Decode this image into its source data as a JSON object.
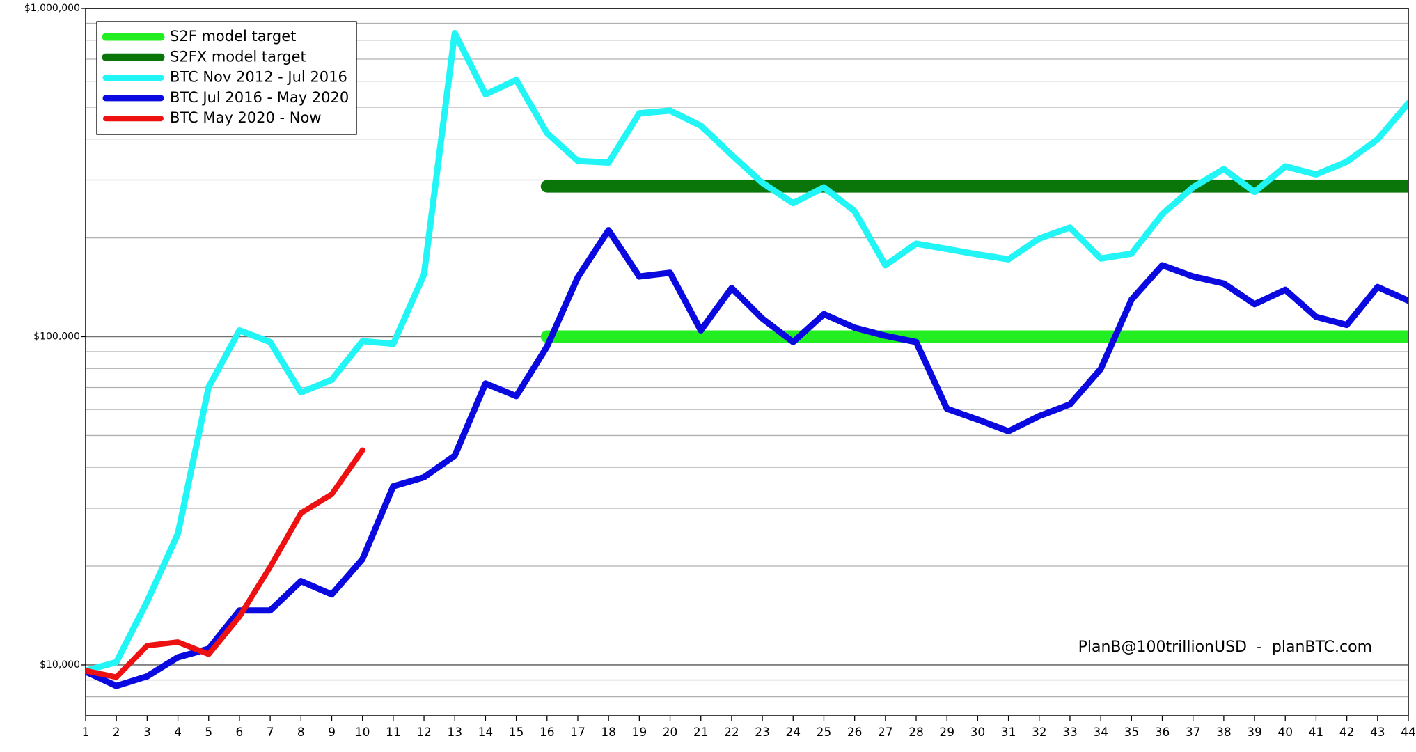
{
  "chart_data": {
    "type": "line",
    "log_y": true,
    "grid": true,
    "legend": "upper left",
    "annotation": "PlanB@100trillionUSD  -  planBTC.com",
    "x": [
      1,
      2,
      3,
      4,
      5,
      6,
      7,
      8,
      9,
      10,
      11,
      12,
      13,
      14,
      15,
      16,
      17,
      18,
      19,
      20,
      21,
      22,
      23,
      24,
      25,
      26,
      27,
      28,
      29,
      30,
      31,
      32,
      33,
      34,
      35,
      36,
      37,
      38,
      39,
      40,
      41,
      42,
      43,
      44
    ],
    "xlim": [
      1,
      44
    ],
    "xticks": [
      1,
      2,
      3,
      4,
      5,
      6,
      7,
      8,
      9,
      10,
      11,
      12,
      13,
      14,
      15,
      16,
      17,
      18,
      19,
      20,
      21,
      22,
      23,
      24,
      25,
      26,
      27,
      28,
      29,
      30,
      31,
      32,
      33,
      34,
      35,
      36,
      37,
      38,
      39,
      40,
      41,
      42,
      43,
      44
    ],
    "ylim": [
      7000,
      1000000
    ],
    "yticks": [
      {
        "value": 10000,
        "label": "$10,000"
      },
      {
        "value": 100000,
        "label": "$100,000"
      },
      {
        "value": 1000000,
        "label": "$1,000,000"
      }
    ],
    "yminor": [
      8000,
      9000,
      20000,
      30000,
      40000,
      50000,
      60000,
      70000,
      80000,
      90000,
      200000,
      300000,
      400000,
      500000,
      600000,
      700000,
      800000,
      900000
    ],
    "series": [
      {
        "name": "S2F model target",
        "color": "#22ee22",
        "width": 18,
        "values": [
          null,
          null,
          null,
          null,
          null,
          null,
          null,
          null,
          null,
          null,
          null,
          null,
          null,
          null,
          null,
          100000,
          100000,
          100000,
          100000,
          100000,
          100000,
          100000,
          100000,
          100000,
          100000,
          100000,
          100000,
          100000,
          100000,
          100000,
          100000,
          100000,
          100000,
          100000,
          100000,
          100000,
          100000,
          100000,
          100000,
          100000,
          100000,
          100000,
          100000,
          100000
        ]
      },
      {
        "name": "S2FX model target",
        "color": "#0a760a",
        "width": 18,
        "values": [
          null,
          null,
          null,
          null,
          null,
          null,
          null,
          null,
          null,
          null,
          null,
          null,
          null,
          null,
          null,
          287000,
          287000,
          287000,
          287000,
          287000,
          287000,
          287000,
          287000,
          287000,
          287000,
          287000,
          287000,
          287000,
          287000,
          287000,
          287000,
          287000,
          287000,
          287000,
          287000,
          287000,
          287000,
          287000,
          287000,
          287000,
          287000,
          287000,
          287000,
          287000
        ]
      },
      {
        "name": "BTC Nov 2012 - Jul 2016",
        "color": "#22f5f5",
        "width": 9,
        "values": [
          9600,
          10200,
          15600,
          25100,
          70200,
          104500,
          96300,
          67600,
          73900,
          96900,
          95100,
          154600,
          841000,
          547000,
          605000,
          417000,
          343000,
          339000,
          479000,
          488000,
          439000,
          358000,
          294000,
          255000,
          285000,
          241000,
          165000,
          192000,
          185000,
          178000,
          172000,
          199000,
          215000,
          173000,
          179000,
          236000,
          285000,
          324000,
          276000,
          330000,
          312000,
          341000,
          399000,
          514000
        ]
      },
      {
        "name": "BTC Jul 2016 - May 2020",
        "color": "#0a0ae0",
        "width": 9,
        "values": [
          9540,
          8630,
          9230,
          10550,
          11200,
          14650,
          14650,
          18000,
          16400,
          21000,
          35000,
          37300,
          43400,
          72000,
          65900,
          93300,
          151700,
          211000,
          152500,
          156500,
          104500,
          140600,
          113500,
          96300,
          117100,
          106500,
          100600,
          96300,
          60300,
          55900,
          51500,
          57300,
          62200,
          79700,
          129600,
          165000,
          152500,
          145200,
          125600,
          138900,
          114900,
          108600,
          141600,
          128700
        ]
      },
      {
        "name": "BTC May 2020 - Now",
        "color": "#ee1111",
        "width": 8,
        "values": [
          9600,
          9180,
          11450,
          11740,
          10780,
          14030,
          19900,
          29000,
          33100,
          45100,
          null,
          null,
          null,
          null,
          null,
          null,
          null,
          null,
          null,
          null,
          null,
          null,
          null,
          null,
          null,
          null,
          null,
          null,
          null,
          null,
          null,
          null,
          null,
          null,
          null,
          null,
          null,
          null,
          null,
          null,
          null,
          null,
          null,
          null
        ]
      }
    ]
  }
}
